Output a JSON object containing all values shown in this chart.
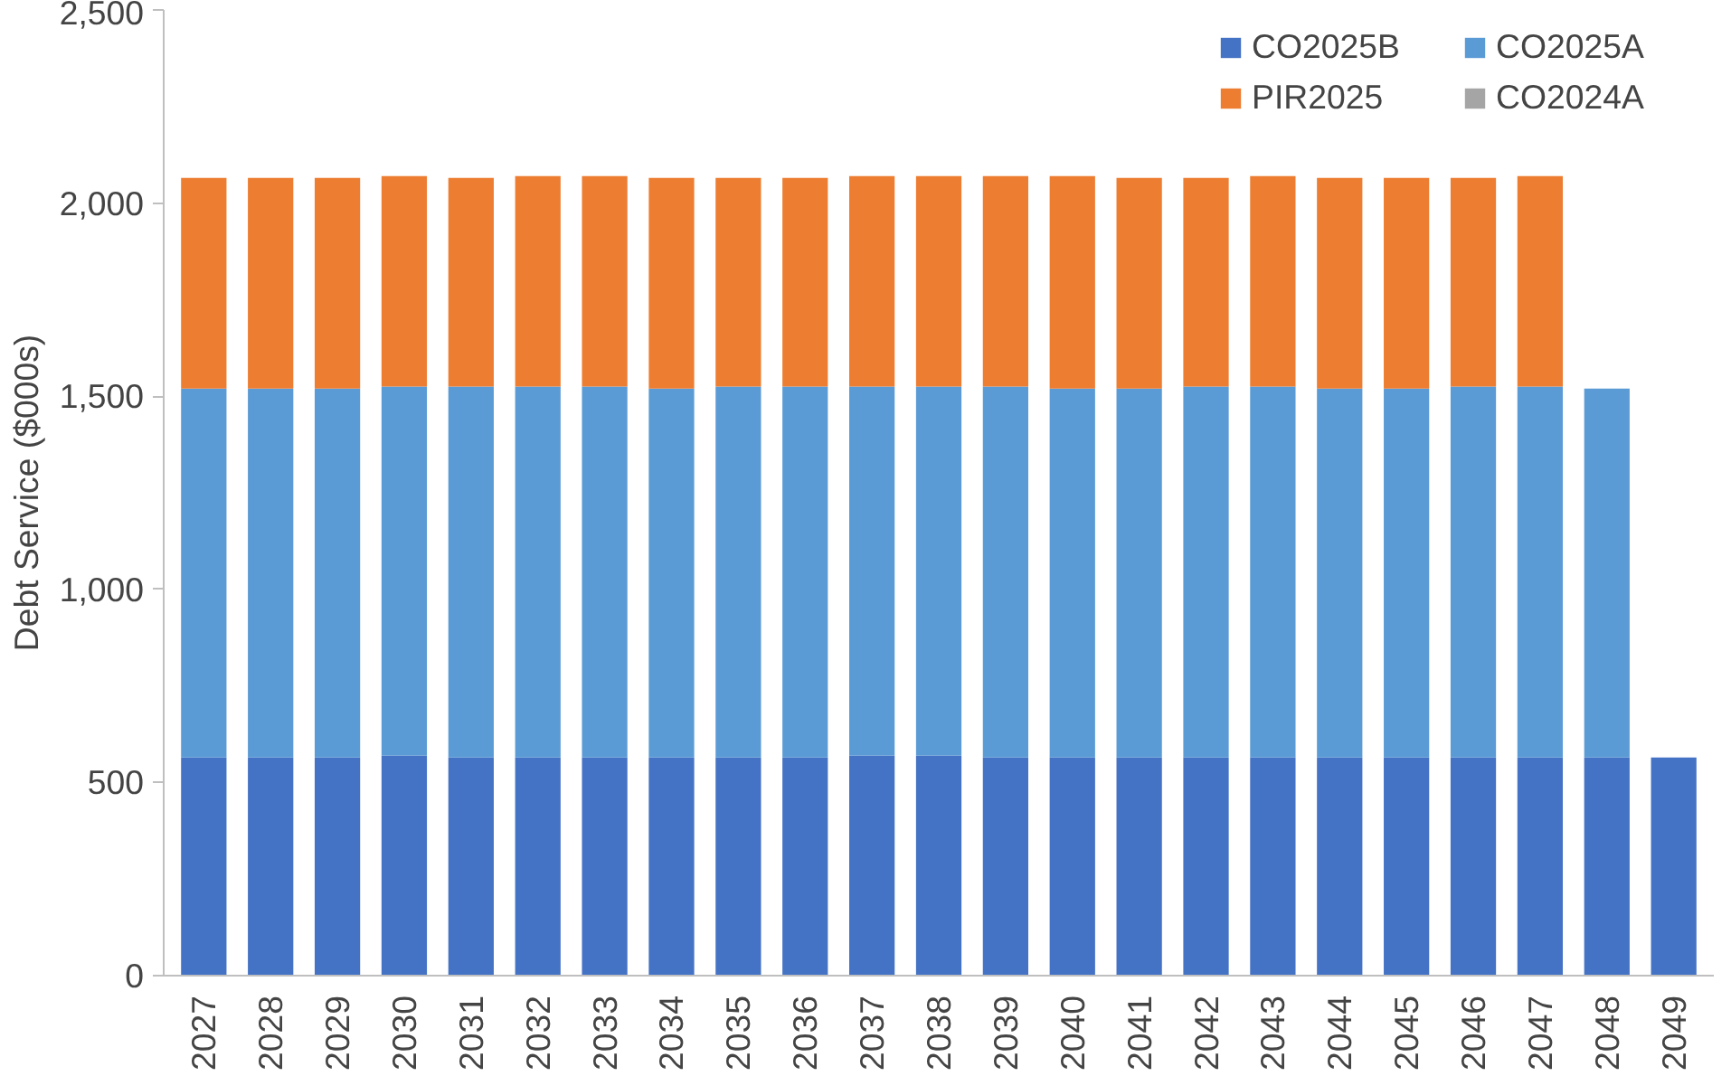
{
  "chart_data": {
    "type": "bar",
    "stacked": true,
    "ylabel": "Debt Service ($000s)",
    "categories": [
      "2027",
      "2028",
      "2029",
      "2030",
      "2031",
      "2032",
      "2033",
      "2034",
      "2035",
      "2036",
      "2037",
      "2038",
      "2039",
      "2040",
      "2041",
      "2042",
      "2043",
      "2044",
      "2045",
      "2046",
      "2047",
      "2048",
      "2049"
    ],
    "series": [
      {
        "name": "CO2025B",
        "color": "#4472c4",
        "values": [
          565,
          565,
          565,
          570,
          565,
          565,
          565,
          565,
          565,
          565,
          570,
          570,
          565,
          565,
          565,
          565,
          565,
          565,
          565,
          565,
          565,
          565,
          565
        ]
      },
      {
        "name": "CO2025A",
        "color": "#5b9bd5",
        "values": [
          955,
          955,
          955,
          955,
          960,
          960,
          960,
          955,
          960,
          960,
          955,
          955,
          960,
          955,
          955,
          960,
          960,
          955,
          955,
          960,
          960,
          955,
          null
        ]
      },
      {
        "name": "PIR2025",
        "color": "#ed7d31",
        "values": [
          545,
          545,
          545,
          545,
          540,
          545,
          545,
          545,
          540,
          540,
          545,
          545,
          545,
          550,
          545,
          540,
          545,
          545,
          545,
          540,
          545,
          null,
          null
        ]
      },
      {
        "name": "CO2024A",
        "color": "#a5a5a5",
        "values": [
          0,
          0,
          0,
          0,
          0,
          0,
          0,
          0,
          0,
          0,
          0,
          0,
          0,
          0,
          0,
          0,
          0,
          0,
          0,
          0,
          0,
          0,
          0
        ]
      }
    ],
    "ylim": [
      0,
      2500
    ],
    "yticks": [
      {
        "value": 0,
        "label": "0"
      },
      {
        "value": 500,
        "label": "500"
      },
      {
        "value": 1000,
        "label": "1,000"
      },
      {
        "value": 1500,
        "label": "1,500"
      },
      {
        "value": 2000,
        "label": "2,000"
      },
      {
        "value": 2500,
        "label": "2,500"
      }
    ],
    "grid": false,
    "legend": "top right"
  }
}
